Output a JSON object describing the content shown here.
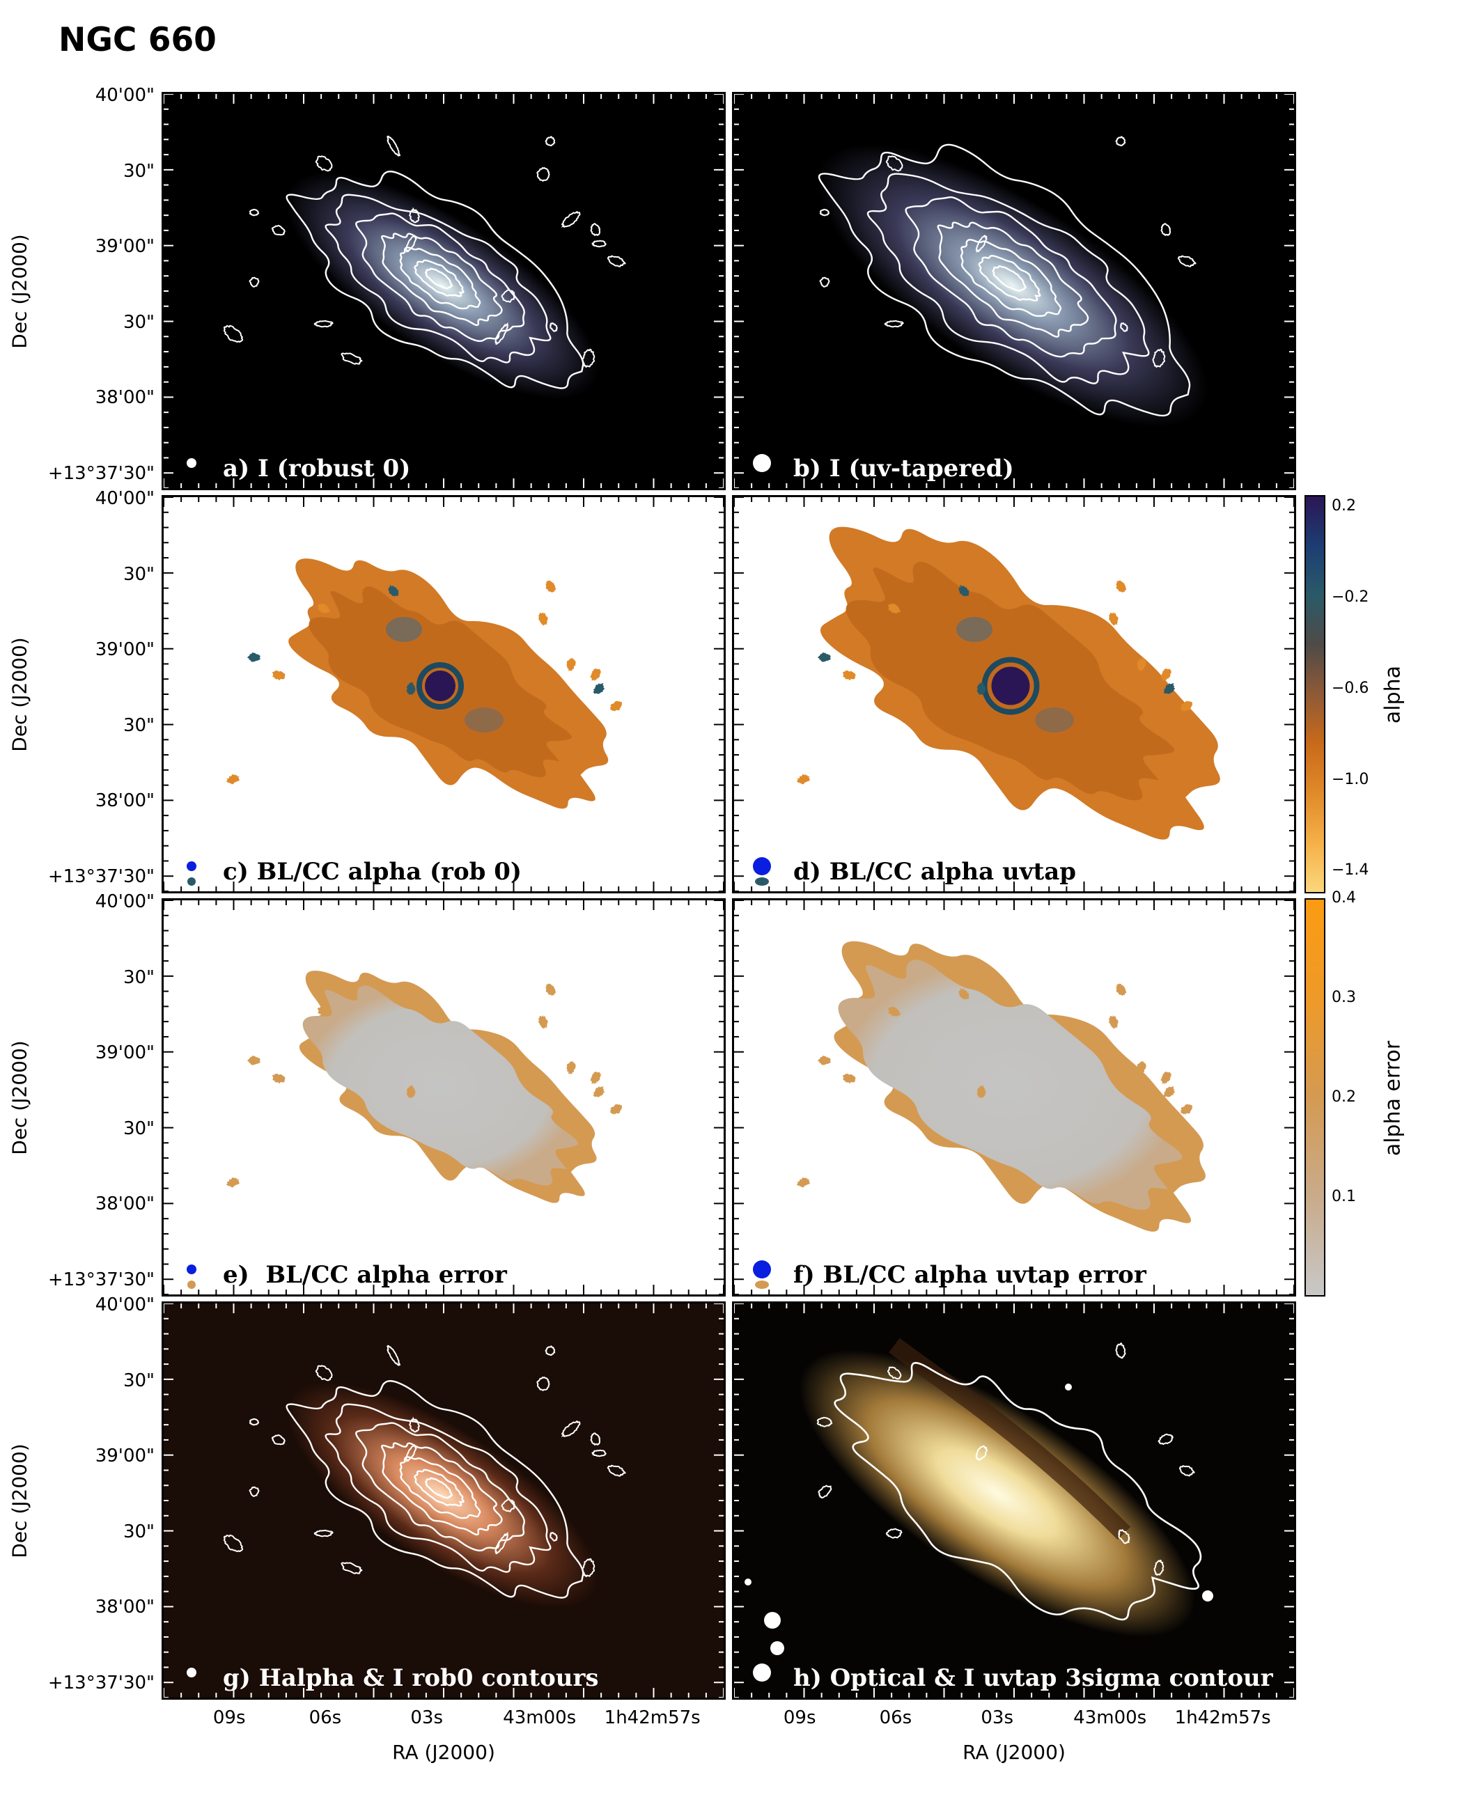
{
  "figure": {
    "title": "NGC 660",
    "panels": [
      {
        "id": "a",
        "label": "a) I (robust 0)",
        "style": "radio"
      },
      {
        "id": "b",
        "label": "b) I (uv-tapered)",
        "style": "radio"
      },
      {
        "id": "c",
        "label": "c) BL/CC alpha (rob 0)",
        "style": "alpha"
      },
      {
        "id": "d",
        "label": "d) BL/CC alpha uvtap",
        "style": "alpha"
      },
      {
        "id": "e",
        "label": "e)  BL/CC alpha error",
        "style": "err"
      },
      {
        "id": "f",
        "label": "f) BL/CC alpha uvtap error",
        "style": "err"
      },
      {
        "id": "g",
        "label": "g) Halpha & I rob0 contours",
        "style": "halpha"
      },
      {
        "id": "h",
        "label": "h) Optical & I uvtap 3sigma contour",
        "style": "optical"
      }
    ],
    "y_axis": {
      "label": "Dec (J2000)",
      "ticks": [
        "40'00\"",
        "30\"",
        "39'00\"",
        "30\"",
        "38'00\"",
        "+13°37'30\""
      ]
    },
    "x_axis": {
      "label": "RA (J2000)",
      "ticks": [
        "09s",
        "06s",
        "03s",
        "43m00s",
        "1h42m57s"
      ]
    },
    "colorbars": [
      {
        "label": "alpha",
        "ticks": [
          "0.2",
          "−0.2",
          "−0.6",
          "−1.0",
          "−1.4"
        ],
        "range": [
          -1.5,
          0.25
        ],
        "colors": [
          "#fbd77c",
          "#f5b048",
          "#e08a2a",
          "#c86a1a",
          "#8f5a36",
          "#4f4a48",
          "#2a5a68",
          "#1d3d73",
          "#2b1655"
        ]
      },
      {
        "label": "alpha error",
        "ticks": [
          "0.4",
          "0.3",
          "0.2",
          "0.1"
        ],
        "range": [
          0,
          0.4
        ],
        "colors": [
          "#c8c8c8",
          "#c9ab8a",
          "#d49a52",
          "#ee9a28",
          "#fb9b12"
        ]
      }
    ]
  }
}
